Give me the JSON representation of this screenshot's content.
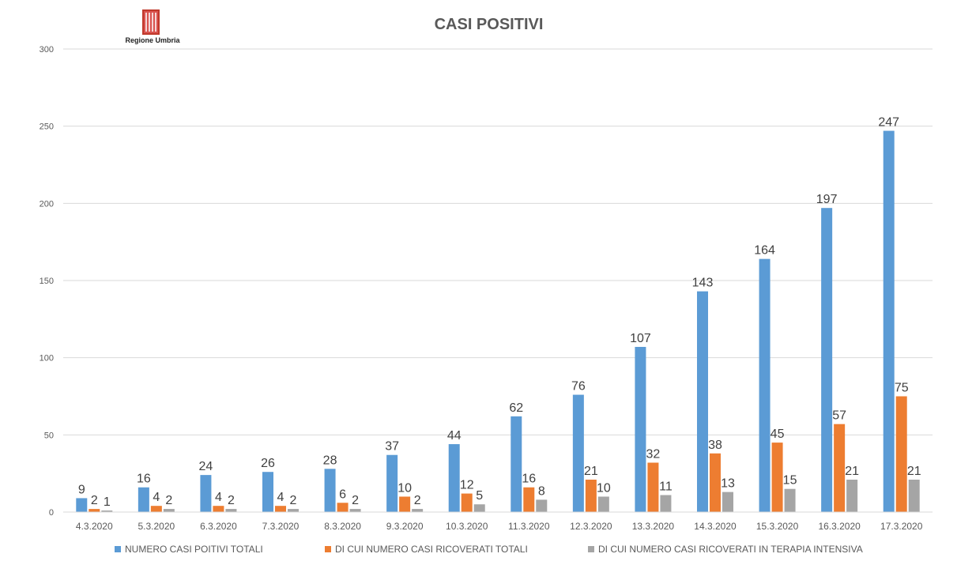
{
  "logo": {
    "text": "Regione Umbria"
  },
  "chart_data": {
    "type": "bar",
    "title": "CASI POSITIVI",
    "xlabel": "",
    "ylabel": "",
    "ylim": [
      0,
      300
    ],
    "yticks": [
      0,
      50,
      100,
      150,
      200,
      250,
      300
    ],
    "grid": true,
    "legend_position": "bottom",
    "categories": [
      "4.3.2020",
      "5.3.2020",
      "6.3.2020",
      "7.3.2020",
      "8.3.2020",
      "9.3.2020",
      "10.3.2020",
      "11.3.2020",
      "12.3.2020",
      "13.3.2020",
      "14.3.2020",
      "15.3.2020",
      "16.3.2020",
      "17.3.2020"
    ],
    "series": [
      {
        "name": "NUMERO CASI POITIVI TOTALI",
        "color": "#5b9bd5",
        "values": [
          9,
          16,
          24,
          26,
          28,
          37,
          44,
          62,
          76,
          107,
          143,
          164,
          197,
          247
        ]
      },
      {
        "name": "DI CUI NUMERO CASI RICOVERATI TOTALI",
        "color": "#ed7d31",
        "values": [
          2,
          4,
          4,
          4,
          6,
          10,
          12,
          16,
          21,
          32,
          38,
          45,
          57,
          75
        ]
      },
      {
        "name": "DI CUI NUMERO CASI RICOVERATI IN TERAPIA INTENSIVA",
        "color": "#a5a5a5",
        "values": [
          1,
          2,
          2,
          2,
          2,
          2,
          5,
          8,
          10,
          11,
          13,
          15,
          21,
          21
        ]
      }
    ]
  }
}
